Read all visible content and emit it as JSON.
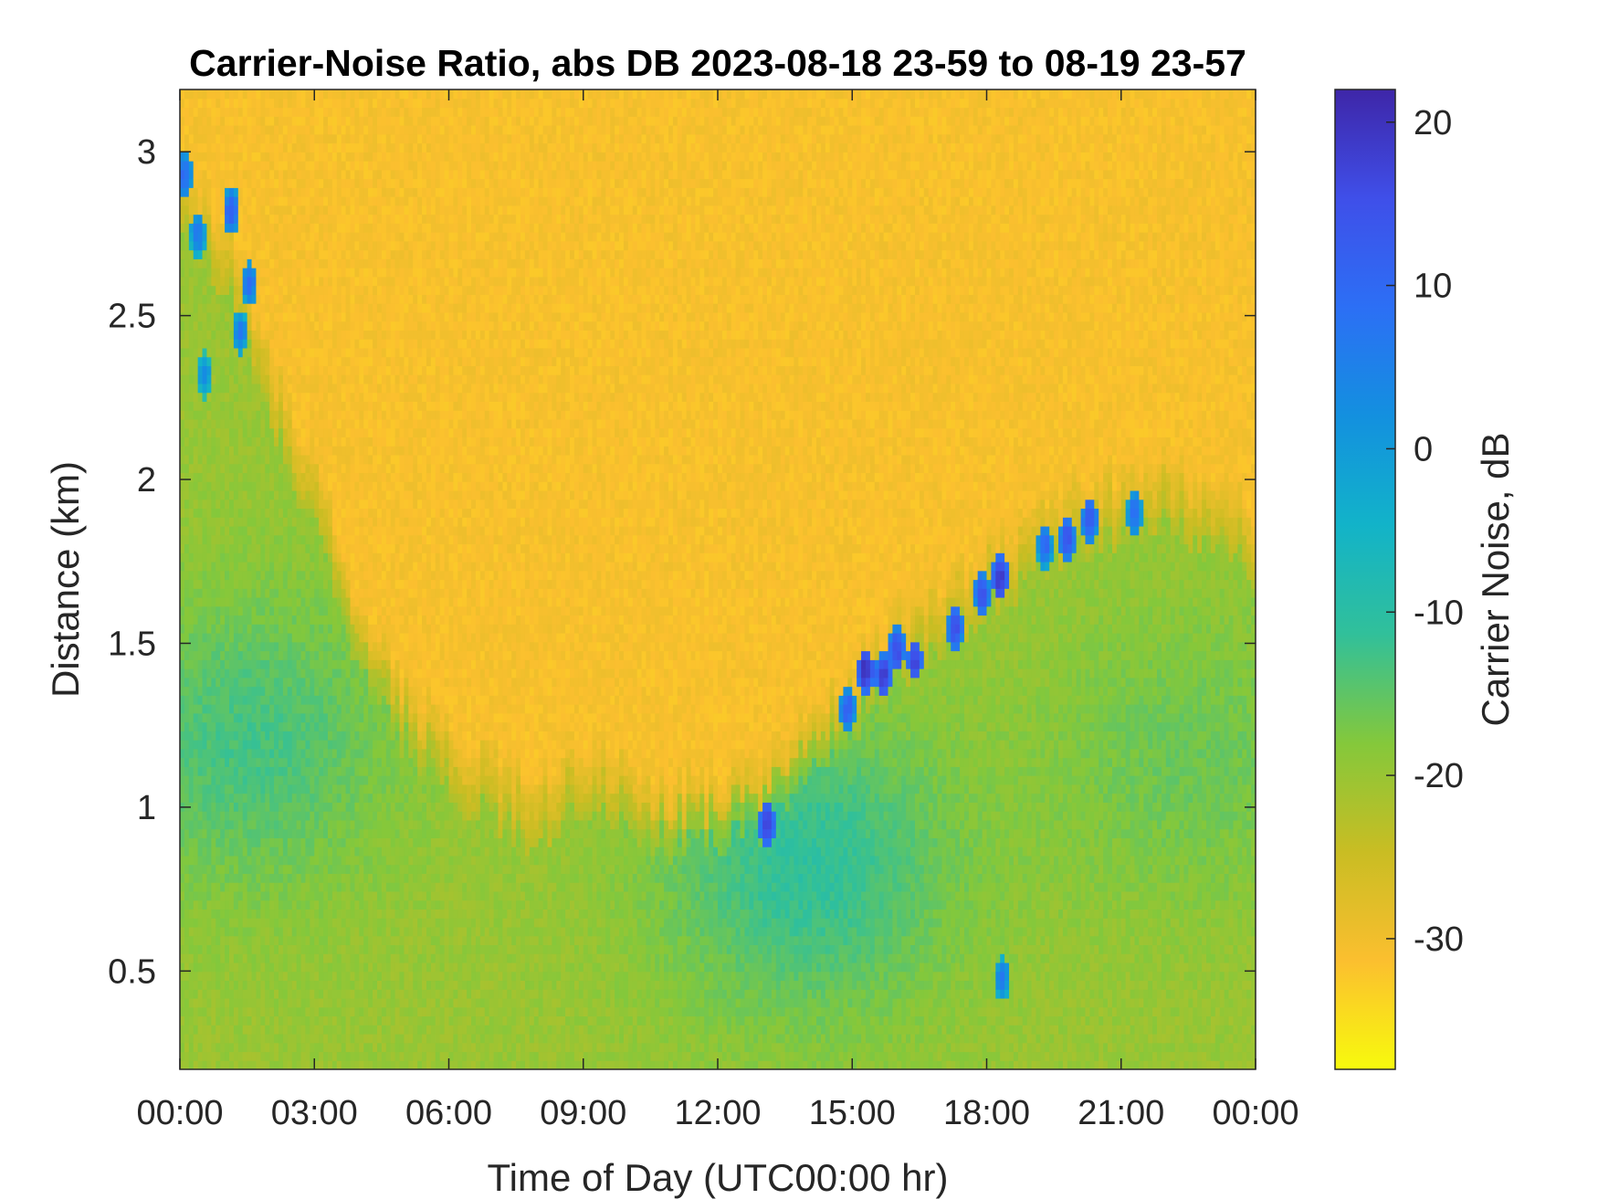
{
  "chart_data": {
    "type": "heatmap",
    "title": "Carrier-Noise Ratio, abs DB 2023-08-18 23-59 to 08-19 23-57",
    "xlabel": "Time of Day (UTC00:00 hr)",
    "ylabel": "Distance (km)",
    "xlim": [
      0,
      24
    ],
    "ylim": [
      0.2,
      3.19
    ],
    "x_ticks": [
      0,
      3,
      6,
      9,
      12,
      15,
      18,
      21,
      24
    ],
    "x_tick_labels": [
      "00:00",
      "03:00",
      "06:00",
      "09:00",
      "12:00",
      "15:00",
      "18:00",
      "21:00",
      "00:00"
    ],
    "y_ticks": [
      0.5,
      1,
      1.5,
      2,
      2.5,
      3
    ],
    "y_tick_labels": [
      "0.5",
      "1",
      "1.5",
      "2",
      "2.5",
      "3"
    ],
    "colorbar": {
      "label": "Carrier Noise, dB",
      "clim": [
        -38,
        22
      ],
      "ticks": [
        -30,
        -20,
        -10,
        0,
        10,
        20
      ],
      "tick_labels": [
        "-30",
        "-20",
        "-10",
        "0",
        "10",
        "20"
      ],
      "colormap": "parula-reversed",
      "color_stops": [
        "#f8fa0d",
        "#fbbf2f",
        "#c9bd23",
        "#84c83b",
        "#31c09a",
        "#12b3c9",
        "#1390df",
        "#2c6ff5",
        "#3f4fe9",
        "#3e26a8"
      ]
    },
    "background_level_db": -31,
    "aerosol_layer_top_km": [
      [
        0,
        2.85
      ],
      [
        1,
        2.7
      ],
      [
        2,
        2.3
      ],
      [
        3,
        1.95
      ],
      [
        4,
        1.55
      ],
      [
        5,
        1.3
      ],
      [
        6,
        1.15
      ],
      [
        7,
        1.05
      ],
      [
        8,
        1.0
      ],
      [
        9,
        1.1
      ],
      [
        10,
        1.05
      ],
      [
        11,
        0.98
      ],
      [
        12,
        1.0
      ],
      [
        13,
        1.05
      ],
      [
        14,
        1.2
      ],
      [
        15,
        1.35
      ],
      [
        16,
        1.5
      ],
      [
        17,
        1.58
      ],
      [
        18,
        1.72
      ],
      [
        19,
        1.8
      ],
      [
        20,
        1.88
      ],
      [
        21,
        1.93
      ],
      [
        22,
        1.97
      ],
      [
        23,
        1.88
      ],
      [
        24,
        1.82
      ]
    ],
    "boundary_layer_level_db": -20,
    "boundary_layer_core": [
      {
        "time": 1.5,
        "distance_km": 1.2,
        "level_db": -13
      },
      {
        "time": 14.0,
        "distance_km": 0.82,
        "level_db": -11
      },
      {
        "time": 22.5,
        "distance_km": 1.15,
        "level_db": -16
      }
    ],
    "cloud_returns": [
      {
        "time": 0.1,
        "distance_km": 2.93,
        "level_db": 10
      },
      {
        "time": 0.4,
        "distance_km": 2.75,
        "level_db": 7
      },
      {
        "time": 1.15,
        "distance_km": 2.82,
        "level_db": 12
      },
      {
        "time": 1.55,
        "distance_km": 2.6,
        "level_db": 9
      },
      {
        "time": 1.35,
        "distance_km": 2.45,
        "level_db": 6
      },
      {
        "time": 0.55,
        "distance_km": 2.32,
        "level_db": 3
      },
      {
        "time": 13.1,
        "distance_km": 0.95,
        "level_db": 18
      },
      {
        "time": 14.9,
        "distance_km": 1.3,
        "level_db": 12
      },
      {
        "time": 15.3,
        "distance_km": 1.42,
        "level_db": 20
      },
      {
        "time": 15.7,
        "distance_km": 1.4,
        "level_db": 18
      },
      {
        "time": 16.0,
        "distance_km": 1.48,
        "level_db": 16
      },
      {
        "time": 16.4,
        "distance_km": 1.45,
        "level_db": 17
      },
      {
        "time": 17.3,
        "distance_km": 1.55,
        "level_db": 15
      },
      {
        "time": 17.9,
        "distance_km": 1.65,
        "level_db": 14
      },
      {
        "time": 18.3,
        "distance_km": 1.7,
        "level_db": 19
      },
      {
        "time": 19.3,
        "distance_km": 1.8,
        "level_db": 10
      },
      {
        "time": 19.8,
        "distance_km": 1.82,
        "level_db": 15
      },
      {
        "time": 20.3,
        "distance_km": 1.88,
        "level_db": 14
      },
      {
        "time": 21.3,
        "distance_km": 1.9,
        "level_db": 9
      },
      {
        "time": 18.35,
        "distance_km": 0.48,
        "level_db": 6
      }
    ]
  }
}
